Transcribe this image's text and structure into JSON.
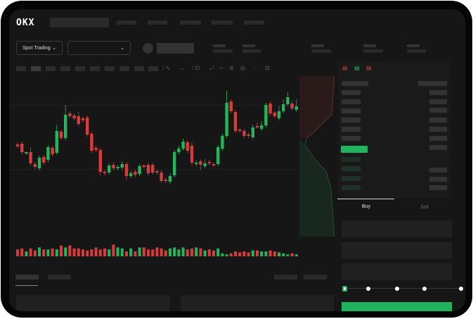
{
  "brand": {
    "logo": "OKX"
  },
  "controls": {
    "market_type": "Spot Trading",
    "pair_select": ""
  },
  "trade": {
    "tabs": [
      "Buy",
      "Sell"
    ],
    "active_tab": "Buy",
    "leverage_slider_percent": 0
  },
  "colors": {
    "up": "#25b45b",
    "down": "#d63c3c",
    "accent": "#22b35e"
  },
  "chart_data": {
    "type": "candlestick",
    "candles": [
      [
        96,
        99,
        91,
        93
      ],
      [
        97,
        100,
        82,
        85
      ],
      [
        83,
        86,
        81,
        85
      ],
      [
        85,
        92,
        66,
        69
      ],
      [
        68,
        71,
        61,
        64
      ],
      [
        62,
        80,
        59,
        77
      ],
      [
        78,
        81,
        67,
        70
      ],
      [
        74,
        95,
        71,
        92
      ],
      [
        91,
        94,
        79,
        82
      ],
      [
        84,
        124,
        81,
        115
      ],
      [
        114,
        117,
        102,
        105
      ],
      [
        105,
        152,
        102,
        138
      ],
      [
        140,
        143,
        133,
        136
      ],
      [
        137,
        140,
        130,
        133
      ],
      [
        136,
        142,
        122,
        125
      ],
      [
        133,
        136,
        127,
        130
      ],
      [
        134,
        137,
        107,
        110
      ],
      [
        111,
        114,
        84,
        87
      ],
      [
        91,
        94,
        85,
        88
      ],
      [
        88,
        91,
        52,
        57
      ],
      [
        57,
        60,
        52,
        55
      ],
      [
        56,
        69,
        53,
        66
      ],
      [
        67,
        71,
        59,
        62
      ],
      [
        62,
        67,
        59,
        64
      ],
      [
        63,
        72,
        60,
        68
      ],
      [
        68,
        71,
        46,
        51
      ],
      [
        51,
        58,
        48,
        55
      ],
      [
        57,
        60,
        50,
        53
      ],
      [
        54,
        68,
        51,
        65
      ],
      [
        66,
        68,
        62,
        64
      ],
      [
        67,
        70,
        52,
        55
      ],
      [
        67,
        70,
        53,
        56
      ],
      [
        58,
        60,
        53,
        56
      ],
      [
        56,
        59,
        41,
        44
      ],
      [
        46,
        49,
        41,
        44
      ],
      [
        43,
        55,
        40,
        51
      ],
      [
        52,
        88,
        49,
        85
      ],
      [
        85,
        94,
        82,
        90
      ],
      [
        90,
        104,
        87,
        100
      ],
      [
        99,
        102,
        84,
        87
      ],
      [
        94,
        99,
        66,
        70
      ],
      [
        68,
        73,
        65,
        70
      ],
      [
        72,
        74,
        60,
        67
      ],
      [
        65,
        75,
        62,
        69
      ],
      [
        71,
        74,
        66,
        69
      ],
      [
        68,
        70,
        64,
        66
      ],
      [
        68,
        95,
        65,
        92
      ],
      [
        90,
        111,
        87,
        108
      ],
      [
        108,
        172,
        105,
        155
      ],
      [
        157,
        160,
        140,
        143
      ],
      [
        142,
        145,
        112,
        115
      ],
      [
        117,
        119,
        112,
        115
      ],
      [
        115,
        118,
        105,
        108
      ],
      [
        110,
        113,
        105,
        108
      ],
      [
        106,
        124,
        103,
        120
      ],
      [
        122,
        127,
        118,
        120
      ],
      [
        118,
        129,
        115,
        123
      ],
      [
        123,
        155,
        120,
        152
      ],
      [
        154,
        157,
        137,
        140
      ],
      [
        141,
        144,
        133,
        136
      ],
      [
        133,
        150,
        130,
        143
      ],
      [
        143,
        160,
        140,
        153
      ],
      [
        153,
        170,
        150,
        163
      ],
      [
        154,
        158,
        144,
        147
      ],
      [
        145,
        160,
        142,
        150
      ]
    ],
    "volumes": [
      7,
      8,
      5,
      8,
      6,
      9,
      7,
      7,
      8,
      7,
      11,
      9,
      11,
      8,
      8,
      7,
      6,
      7,
      9,
      7,
      8,
      7,
      12,
      9,
      8,
      5,
      8,
      5,
      9,
      9,
      7,
      7,
      9,
      8,
      6,
      8,
      9,
      7,
      9,
      7,
      8,
      9,
      8,
      6,
      7,
      6,
      8,
      3,
      2,
      3,
      5,
      4,
      5,
      4,
      6,
      6,
      5,
      5,
      6,
      5,
      4,
      3,
      2,
      3,
      2
    ],
    "depth": {
      "asks_color": "#d63c3c",
      "bids_color": "#25b45b"
    }
  }
}
